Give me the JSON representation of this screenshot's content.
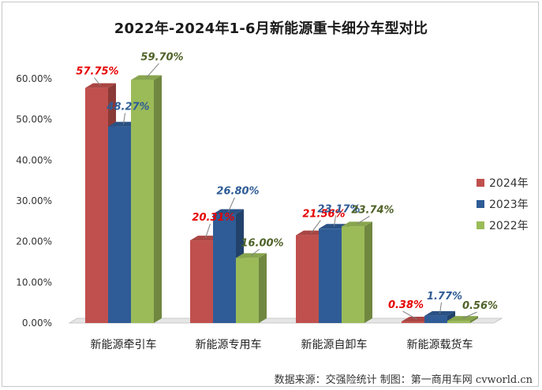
{
  "chart_data": {
    "type": "bar",
    "title": "2022年-2024年1-6月新能源重卡细分车型对比",
    "categories": [
      "新能源牵引车",
      "新能源专用车",
      "新能源自卸车",
      "新能源载货车"
    ],
    "series": [
      {
        "name": "2024年",
        "values": [
          57.75,
          20.31,
          21.56,
          0.38
        ],
        "labels": [
          "57.75%",
          "20.31%",
          "21.56%",
          "0.38%"
        ],
        "color": "#c0504d",
        "label_color": "#e60000"
      },
      {
        "name": "2023年",
        "values": [
          48.27,
          26.8,
          23.17,
          1.77
        ],
        "labels": [
          "48.27%",
          "26.80%",
          "23.17%",
          "1.77%"
        ],
        "color": "#2f5c96",
        "label_color": "#2f5c96"
      },
      {
        "name": "2022年",
        "values": [
          59.7,
          16.0,
          23.74,
          0.56
        ],
        "labels": [
          "59.70%",
          "16.00%",
          "23.74%",
          "0.56%"
        ],
        "color": "#9bbb59",
        "label_color": "#4f6228"
      }
    ],
    "ylim": [
      0,
      60
    ],
    "yticks": [
      "0.00%",
      "10.00%",
      "20.00%",
      "30.00%",
      "40.00%",
      "50.00%",
      "60.00%"
    ],
    "legend_position": "right",
    "grid": false
  },
  "source_text": "数据来源：交强险统计  制图：第一商用车网 cvworld.cn"
}
